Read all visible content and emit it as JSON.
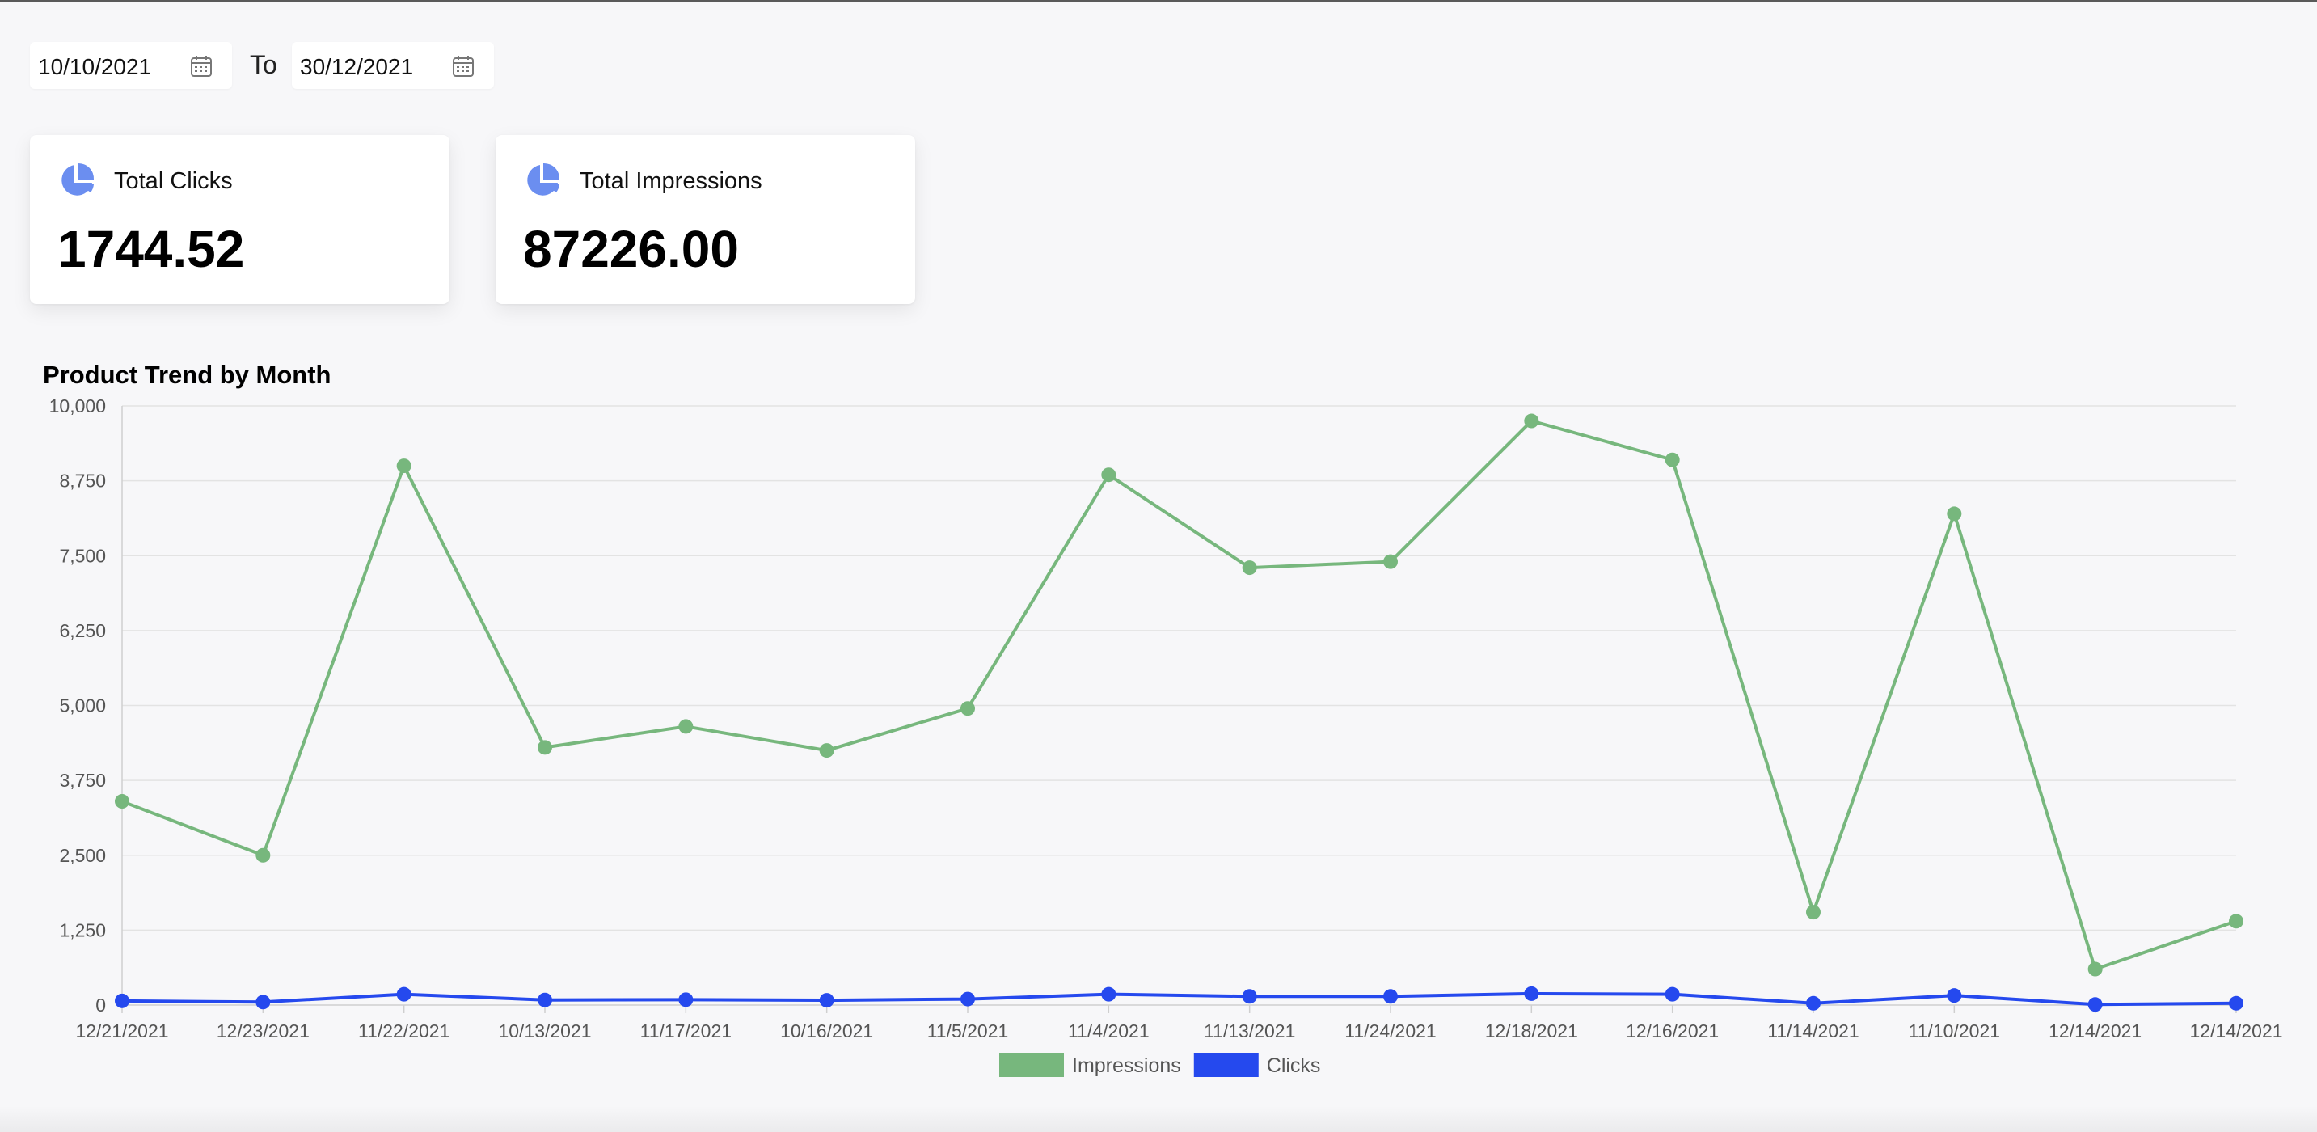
{
  "date_range": {
    "from_value": "10/10/2021",
    "to_label": "To",
    "to_value": "30/12/2021"
  },
  "cards": {
    "clicks": {
      "label": "Total Clicks",
      "value": "1744.52"
    },
    "impressions": {
      "label": "Total Impressions",
      "value": "87226.00"
    }
  },
  "colors": {
    "impressions": "#77b77d",
    "clicks": "#2549ee",
    "accent_icon": "#6b8ef0"
  },
  "chart_data": {
    "type": "line",
    "title": "Product Trend by Month",
    "x": [
      "12/21/2021",
      "12/23/2021",
      "11/22/2021",
      "10/13/2021",
      "11/17/2021",
      "10/16/2021",
      "11/5/2021",
      "11/4/2021",
      "11/13/2021",
      "11/24/2021",
      "12/18/2021",
      "12/16/2021",
      "11/14/2021",
      "11/10/2021",
      "12/14/2021",
      "12/14/2021"
    ],
    "ylim": [
      0,
      10000
    ],
    "yticks": [
      "0",
      "1,250",
      "2,500",
      "3,750",
      "5,000",
      "6,250",
      "7,500",
      "8,750",
      "10,000"
    ],
    "grid": true,
    "legend_position": "bottom",
    "series": [
      {
        "name": "Impressions",
        "color": "#77b77d",
        "values": [
          3400,
          2500,
          9000,
          4300,
          4650,
          4250,
          4950,
          8850,
          7300,
          7400,
          9750,
          9100,
          1550,
          8200,
          600,
          1400
        ]
      },
      {
        "name": "Clicks",
        "color": "#2549ee",
        "values": [
          70,
          50,
          180,
          85,
          90,
          80,
          100,
          180,
          145,
          145,
          190,
          180,
          30,
          160,
          10,
          30
        ]
      }
    ]
  }
}
